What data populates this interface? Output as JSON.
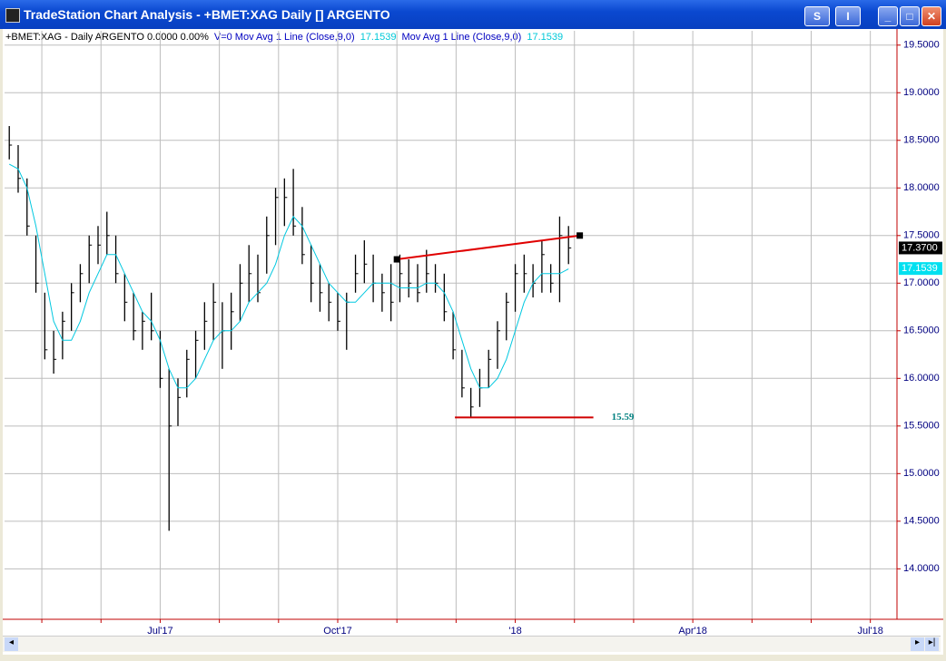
{
  "window": {
    "title": "TradeStation Chart Analysis - +BMET:XAG Daily [] ARGENTO",
    "buttons": [
      "S",
      "I"
    ]
  },
  "legend": [
    {
      "text": "+BMET:XAG - Daily  ARGENTO  0.0000  0.00%",
      "color": "#000000"
    },
    {
      "text": "V=0  Mov Avg 1 Line (Close,9,0)",
      "color": "#0000c0"
    },
    {
      "text": "17.1539",
      "color": "#00c8d8"
    },
    {
      "text": "Mov Avg 1 Line (Close,9,0)",
      "color": "#0000c0"
    },
    {
      "text": "17.1539",
      "color": "#00c8d8"
    }
  ],
  "chart_data": {
    "type": "ohlc",
    "bar_color": "#000000",
    "x": [
      4.45,
      4.6,
      4.75,
      4.9,
      5.05,
      5.2,
      5.35,
      5.5,
      5.65,
      5.8,
      5.95,
      6.1,
      6.25,
      6.4,
      6.55,
      6.7,
      6.85,
      7.0,
      7.15,
      7.3,
      7.45,
      7.6,
      7.75,
      7.9,
      8.05,
      8.2,
      8.35,
      8.5,
      8.65,
      8.8,
      8.95,
      9.1,
      9.25,
      9.4,
      9.55,
      9.7,
      9.85,
      10.0,
      10.15,
      10.3,
      10.45,
      10.6,
      10.75,
      10.9,
      11.05,
      11.2,
      11.35,
      11.5,
      11.65,
      11.8,
      11.95,
      12.1,
      12.25,
      12.4,
      12.55,
      12.7,
      12.85,
      13.0,
      13.15,
      13.3,
      13.45,
      13.6,
      13.75,
      13.9
    ],
    "high": [
      18.65,
      18.45,
      18.1,
      17.5,
      16.9,
      16.5,
      16.7,
      17.0,
      17.2,
      17.5,
      17.6,
      17.75,
      17.5,
      17.1,
      16.9,
      16.7,
      16.9,
      16.5,
      16.1,
      16.0,
      16.3,
      16.5,
      16.8,
      17.0,
      16.8,
      16.9,
      17.2,
      17.4,
      17.3,
      17.7,
      18.0,
      18.1,
      18.2,
      17.8,
      17.4,
      17.2,
      17.0,
      16.9,
      16.9,
      17.3,
      17.45,
      17.3,
      17.1,
      17.2,
      17.3,
      17.25,
      17.2,
      17.35,
      17.2,
      17.1,
      16.7,
      16.3,
      15.9,
      16.1,
      16.3,
      16.6,
      16.9,
      17.2,
      17.3,
      17.2,
      17.45,
      17.2,
      17.7,
      17.6
    ],
    "low": [
      18.3,
      17.95,
      17.5,
      16.9,
      16.2,
      16.05,
      16.2,
      16.5,
      16.8,
      17.0,
      17.2,
      17.3,
      17.0,
      16.6,
      16.4,
      16.3,
      16.4,
      15.9,
      14.4,
      15.5,
      15.8,
      16.0,
      16.3,
      16.4,
      16.1,
      16.3,
      16.6,
      16.8,
      16.8,
      17.1,
      17.4,
      17.6,
      17.5,
      17.2,
      16.8,
      16.7,
      16.6,
      16.5,
      16.3,
      16.9,
      17.0,
      16.8,
      16.7,
      16.6,
      16.8,
      16.85,
      16.8,
      16.9,
      16.9,
      16.6,
      16.2,
      15.8,
      15.59,
      15.7,
      15.9,
      16.1,
      16.4,
      16.7,
      16.9,
      16.85,
      16.9,
      16.9,
      16.8,
      17.2
    ],
    "close": [
      18.45,
      18.1,
      17.6,
      17.0,
      16.3,
      16.2,
      16.6,
      16.9,
      17.1,
      17.4,
      17.4,
      17.5,
      17.1,
      16.8,
      16.5,
      16.6,
      16.5,
      16.0,
      15.5,
      15.8,
      16.2,
      16.4,
      16.6,
      16.8,
      16.5,
      16.7,
      17.0,
      17.1,
      16.9,
      17.5,
      17.9,
      17.9,
      17.6,
      17.3,
      17.0,
      16.9,
      16.8,
      16.6,
      16.8,
      17.1,
      17.2,
      17.0,
      16.9,
      16.8,
      17.1,
      17.0,
      16.9,
      17.1,
      17.0,
      16.7,
      16.3,
      15.9,
      15.7,
      15.9,
      16.2,
      16.5,
      16.8,
      17.1,
      17.1,
      17.0,
      17.3,
      17.0,
      17.5,
      17.37
    ],
    "series": [
      {
        "name": "Mov Avg 1 Line (Close,9,0)",
        "color": "#00c8e0",
        "values": [
          18.25,
          18.2,
          18.0,
          17.6,
          17.1,
          16.6,
          16.4,
          16.4,
          16.6,
          16.9,
          17.1,
          17.3,
          17.3,
          17.1,
          16.9,
          16.7,
          16.6,
          16.4,
          16.1,
          15.9,
          15.9,
          16.0,
          16.2,
          16.4,
          16.5,
          16.5,
          16.6,
          16.8,
          16.9,
          17.0,
          17.2,
          17.5,
          17.7,
          17.6,
          17.4,
          17.2,
          17.0,
          16.9,
          16.8,
          16.8,
          16.9,
          17.0,
          17.0,
          17.0,
          16.95,
          16.95,
          16.95,
          17.0,
          17.0,
          16.9,
          16.7,
          16.4,
          16.1,
          15.9,
          15.9,
          16.0,
          16.2,
          16.5,
          16.8,
          17.0,
          17.1,
          17.1,
          17.1,
          17.15
        ]
      }
    ],
    "trendline": {
      "x": [
        11.0,
        14.09
      ],
      "values": [
        17.25,
        17.5
      ],
      "color": "#e00000"
    },
    "support": {
      "x": [
        11.98,
        14.32
      ],
      "value": 15.59,
      "label": "15.59",
      "color": "#d00000",
      "label_color": "#008080"
    },
    "price_markers": [
      {
        "value": 17.37,
        "label": "17.3700",
        "color": "#000000"
      },
      {
        "value": 17.1539,
        "label": "17.1539",
        "color": "#00e0f0"
      }
    ],
    "xlim": [
      4.37,
      19.45
    ],
    "ylim": [
      13.47,
      19.65
    ],
    "xticks": [
      {
        "value": 5,
        "label": null
      },
      {
        "value": 6,
        "label": null
      },
      {
        "value": 7,
        "label": "Jul'17"
      },
      {
        "value": 8,
        "label": null
      },
      {
        "value": 9,
        "label": null
      },
      {
        "value": 10,
        "label": "Oct'17"
      },
      {
        "value": 11,
        "label": null
      },
      {
        "value": 12,
        "label": null
      },
      {
        "value": 13,
        "label": "'18"
      },
      {
        "value": 14,
        "label": null
      },
      {
        "value": 15,
        "label": null
      },
      {
        "value": 16,
        "label": "Apr'18"
      },
      {
        "value": 17,
        "label": null
      },
      {
        "value": 18,
        "label": null
      },
      {
        "value": 19,
        "label": "Jul'18"
      }
    ],
    "yticks": [
      {
        "value": 19.5,
        "label": "19.5000"
      },
      {
        "value": 19,
        "label": "19.0000"
      },
      {
        "value": 18.5,
        "label": "18.5000"
      },
      {
        "value": 18,
        "label": "18.0000"
      },
      {
        "value": 17.5,
        "label": "17.5000"
      },
      {
        "value": 17,
        "label": "17.0000"
      },
      {
        "value": 16.5,
        "label": "16.5000"
      },
      {
        "value": 16,
        "label": "16.0000"
      },
      {
        "value": 15.5,
        "label": "15.5000"
      },
      {
        "value": 15,
        "label": "15.0000"
      },
      {
        "value": 14.5,
        "label": "14.5000"
      },
      {
        "value": 14,
        "label": "14.0000"
      }
    ],
    "grid": true
  }
}
